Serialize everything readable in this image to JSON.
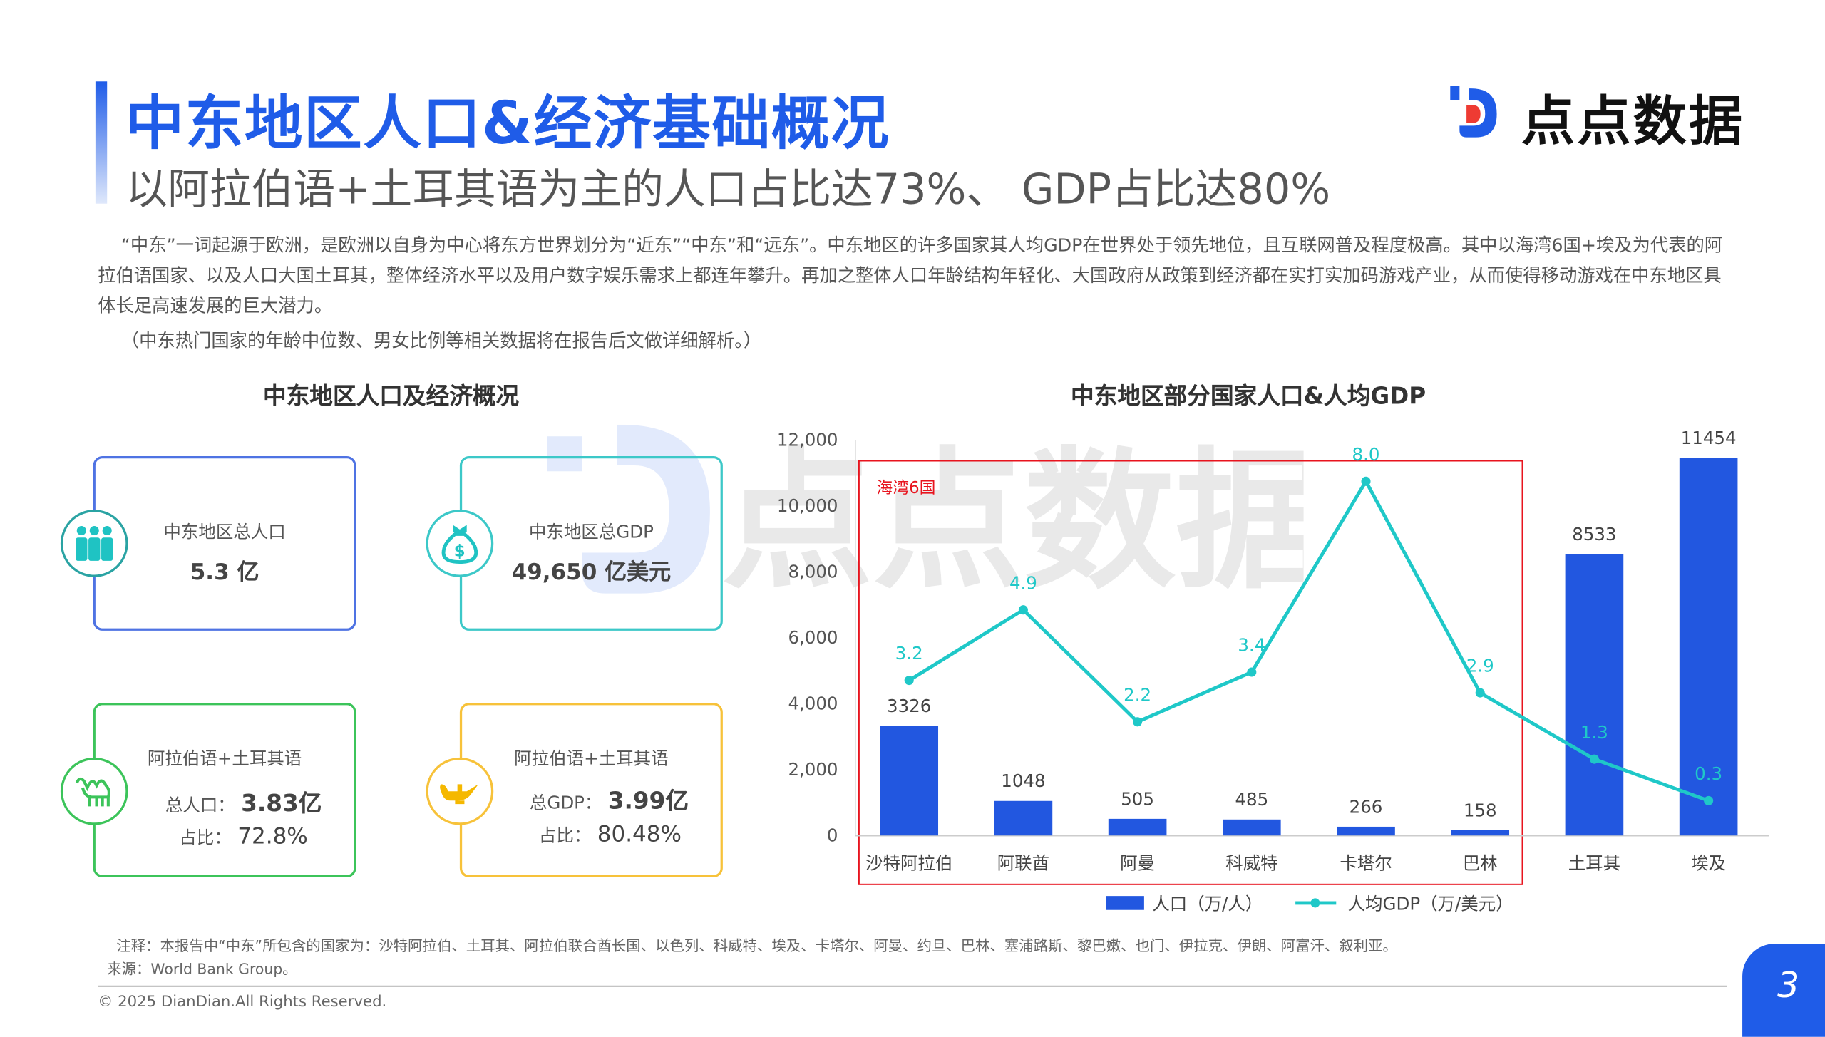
{
  "header": {
    "title": "中东地区人口&经济基础概况",
    "subtitle": "以阿拉伯语+土耳其语为主的人口占比达73%、 GDP占比达80%",
    "logo_text": "点点数据"
  },
  "intro": {
    "paragraph": "“中东”一词起源于欧洲，是欧洲以自身为中心将东方世界划分为“近东”“中东”和“远东”。中东地区的许多国家其人均GDP在世界处于领先地位，且互联网普及程度极高。其中以海湾6国+埃及为代表的阿拉伯语国家、以及人口大国土耳其，整体经济水平以及用户数字娱乐需求上都连年攀升。再加之整体人口年龄结构年轻化、大国政府从政策到经济都在实打实加码游戏产业，从而使得移动游戏在中东地区具体长足高速发展的巨大潜力。",
    "note": "（中东热门国家的年龄中位数、男女比例等相关数据将在报告后文做详细解析。）"
  },
  "overview": {
    "title": "中东地区人口及经济概况",
    "cards": [
      {
        "label": "中东地区总人口",
        "value": "5.3 亿",
        "icon": "people-icon",
        "color": "#4f73e3"
      },
      {
        "label": "中东地区总GDP",
        "value": "49,650 亿美元",
        "icon": "money-bag-icon",
        "color": "#3cc8c8"
      },
      {
        "label": "阿拉伯语+土耳其语",
        "sub_label": "总人口：",
        "value": "3.83亿",
        "share_label": "占比：",
        "share": "72.8%",
        "icon": "camel-icon",
        "color": "#3cc45a"
      },
      {
        "label": "阿拉伯语+土耳其语",
        "sub_label": "总GDP：",
        "value": "3.99亿",
        "share_label": "占比：",
        "share": "80.48%",
        "icon": "magic-lamp-icon",
        "color": "#f7c23a"
      }
    ]
  },
  "chart_data": {
    "type": "bar",
    "title": "中东地区部分国家人口&人均GDP",
    "categories": [
      "沙特阿拉伯",
      "阿联酋",
      "阿曼",
      "科威特",
      "卡塔尔",
      "巴林",
      "土耳其",
      "埃及"
    ],
    "series": [
      {
        "name": "人口（万/人）",
        "type": "bar",
        "values": [
          3326,
          1048,
          505,
          485,
          266,
          158,
          8533,
          11454
        ],
        "color": "#2257e0"
      },
      {
        "name": "人均GDP（万/美元）",
        "type": "line",
        "axis": "secondary",
        "values": [
          3.2,
          4.9,
          2.2,
          3.4,
          8.0,
          2.9,
          1.3,
          0.3
        ],
        "color": "#1fc8c8"
      }
    ],
    "ylim": [
      0,
      12000
    ],
    "y2lim": [
      -0.54,
      9.0
    ],
    "yticks": [
      "0",
      "2,000",
      "4,000",
      "6,000",
      "8,000",
      "10,000",
      "12,000"
    ],
    "yticks_values": [
      0,
      2000,
      4000,
      6000,
      8000,
      10000,
      12000
    ],
    "annotation": "海湾6国",
    "annotation_color": "#e8141e",
    "legend_position": "bottom"
  },
  "footer": {
    "note": "注释：本报告中“中东”所包含的国家为：沙特阿拉伯、土耳其、阿拉伯联合酋长国、以色列、科威特、埃及、卡塔尔、阿曼、约旦、巴林、塞浦路斯、黎巴嫩、也门、伊拉克、伊朗、阿富汗、叙利亚。",
    "source": "来源：World Bank Group。",
    "copyright": "© 2025 DianDian.All Rights Reserved.",
    "page_number": "3"
  }
}
